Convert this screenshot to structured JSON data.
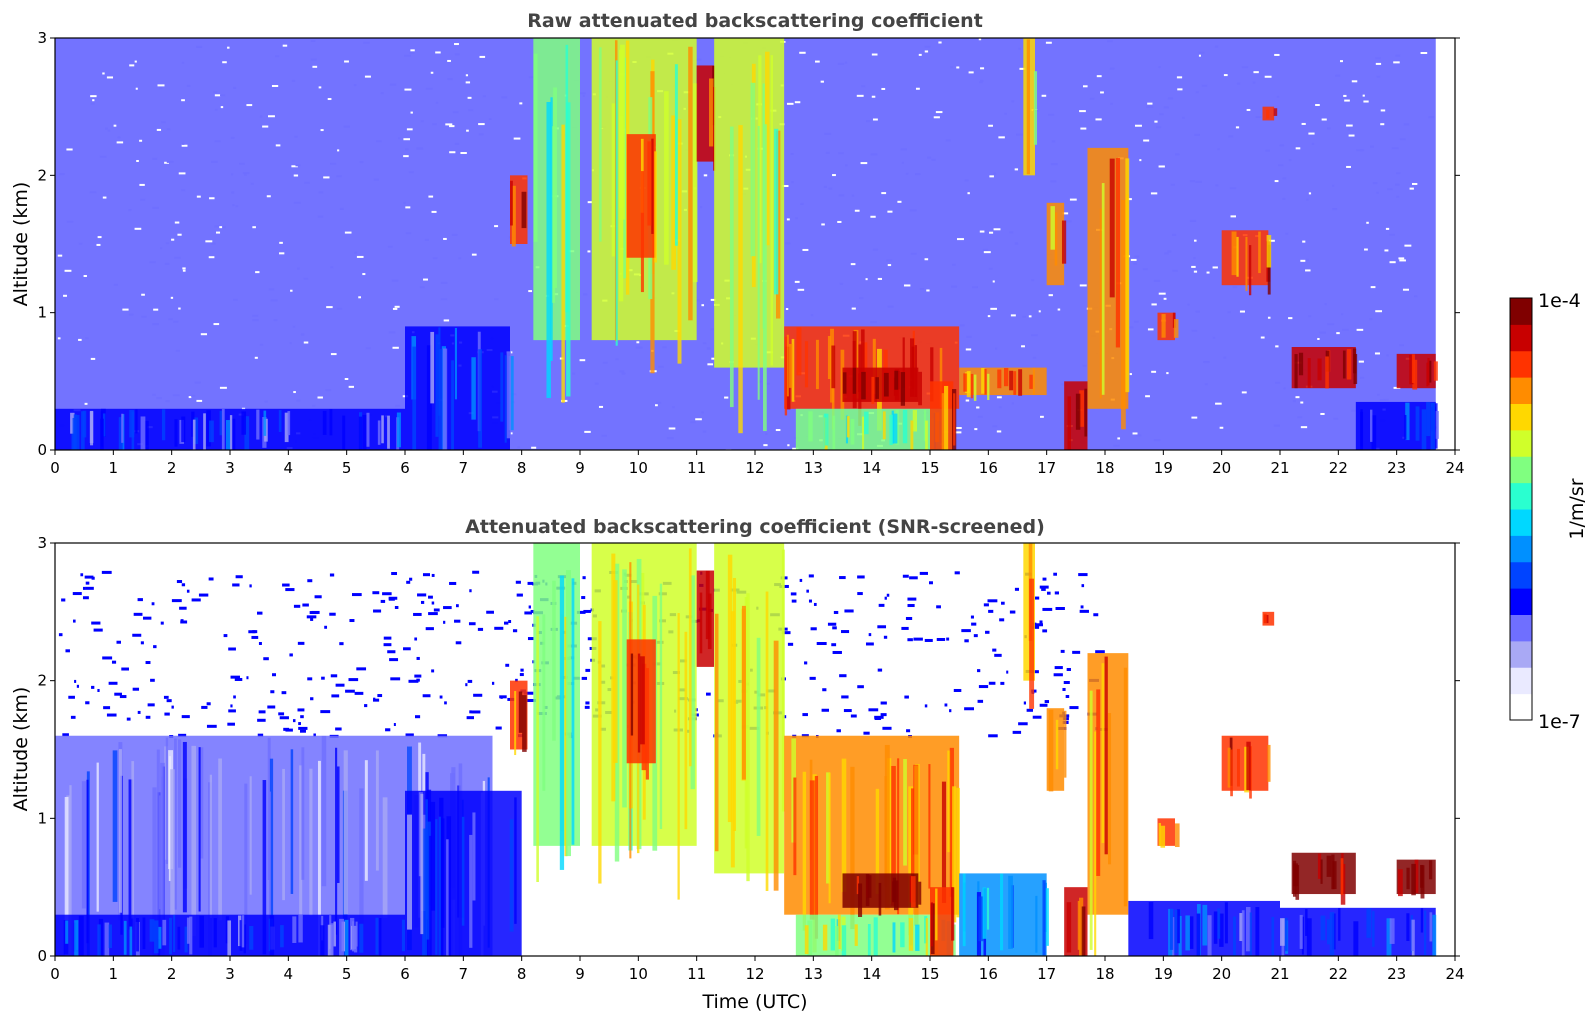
{
  "colors": {
    "colormap": [
      "#ffffff",
      "#eaeaff",
      "#a9a9f5",
      "#6f6fff",
      "#0000ff",
      "#0044ff",
      "#0090ff",
      "#00d8ff",
      "#2affd0",
      "#80ff80",
      "#d0ff2a",
      "#ffd800",
      "#ff8c00",
      "#ff3300",
      "#c80000",
      "#800000"
    ],
    "screened_peak": "#000000"
  },
  "chart_data": [
    {
      "type": "heatmap",
      "title": "Raw attenuated backscattering coefficient",
      "xlabel": "",
      "ylabel": "Altitude (km)",
      "xlim": [
        0,
        24
      ],
      "ylim": [
        0,
        3
      ],
      "x_ticks": [
        "0",
        "1",
        "2",
        "3",
        "4",
        "5",
        "6",
        "7",
        "8",
        "9",
        "10",
        "11",
        "12",
        "13",
        "14",
        "15",
        "16",
        "17",
        "18",
        "19",
        "20",
        "21",
        "22",
        "23",
        "24"
      ],
      "y_ticks": [
        "0",
        "1",
        "2",
        "3"
      ],
      "data_end_time": 23.67,
      "screened": false,
      "features": [
        {
          "t0": 0.0,
          "t1": 6.0,
          "z0": 0.0,
          "z1": 0.3,
          "level": 4
        },
        {
          "t0": 6.0,
          "t1": 7.8,
          "z0": 0.0,
          "z1": 0.9,
          "level": 4
        },
        {
          "t0": 7.8,
          "t1": 8.1,
          "z0": 1.5,
          "z1": 2.0,
          "level": 13
        },
        {
          "t0": 8.2,
          "t1": 9.0,
          "z0": 0.8,
          "z1": 3.0,
          "level": 9
        },
        {
          "t0": 9.2,
          "t1": 11.0,
          "z0": 0.8,
          "z1": 3.0,
          "level": 10
        },
        {
          "t0": 9.8,
          "t1": 10.3,
          "z0": 1.4,
          "z1": 2.3,
          "level": 13
        },
        {
          "t0": 11.0,
          "t1": 11.3,
          "z0": 2.1,
          "z1": 2.8,
          "level": 14
        },
        {
          "t0": 11.3,
          "t1": 12.5,
          "z0": 0.6,
          "z1": 3.0,
          "level": 10
        },
        {
          "t0": 12.5,
          "t1": 15.5,
          "z0": 0.3,
          "z1": 0.9,
          "level": 13
        },
        {
          "t0": 12.7,
          "t1": 15.4,
          "z0": 0.0,
          "z1": 0.3,
          "level": 9
        },
        {
          "t0": 13.5,
          "t1": 14.8,
          "z0": 0.35,
          "z1": 0.6,
          "level": 14
        },
        {
          "t0": 15.0,
          "t1": 15.4,
          "z0": 0.0,
          "z1": 0.5,
          "level": 13
        },
        {
          "t0": 15.5,
          "t1": 17.0,
          "z0": 0.4,
          "z1": 0.6,
          "level": 12
        },
        {
          "t0": 16.6,
          "t1": 16.8,
          "z0": 2.0,
          "z1": 3.0,
          "level": 11
        },
        {
          "t0": 17.0,
          "t1": 17.3,
          "z0": 1.2,
          "z1": 1.8,
          "level": 12
        },
        {
          "t0": 17.3,
          "t1": 17.7,
          "z0": 0.0,
          "z1": 0.5,
          "level": 14
        },
        {
          "t0": 17.7,
          "t1": 18.4,
          "z0": 0.3,
          "z1": 2.2,
          "level": 12
        },
        {
          "t0": 18.9,
          "t1": 19.2,
          "z0": 0.8,
          "z1": 1.0,
          "level": 13
        },
        {
          "t0": 20.0,
          "t1": 20.8,
          "z0": 1.2,
          "z1": 1.6,
          "level": 13
        },
        {
          "t0": 20.7,
          "t1": 20.9,
          "z0": 2.4,
          "z1": 2.5,
          "level": 13
        },
        {
          "t0": 21.2,
          "t1": 22.3,
          "z0": 0.45,
          "z1": 0.75,
          "level": 14
        },
        {
          "t0": 22.3,
          "t1": 23.67,
          "z0": 0.0,
          "z1": 0.35,
          "level": 4
        },
        {
          "t0": 23.0,
          "t1": 23.67,
          "z0": 0.45,
          "z1": 0.7,
          "level": 14
        }
      ]
    },
    {
      "type": "heatmap",
      "title": "Attenuated backscattering coefficient (SNR-screened)",
      "xlabel": "Time (UTC)",
      "ylabel": "Altitude (km)",
      "xlim": [
        0,
        24
      ],
      "ylim": [
        0,
        3
      ],
      "x_ticks": [
        "0",
        "1",
        "2",
        "3",
        "4",
        "5",
        "6",
        "7",
        "8",
        "9",
        "10",
        "11",
        "12",
        "13",
        "14",
        "15",
        "16",
        "17",
        "18",
        "19",
        "20",
        "21",
        "22",
        "23",
        "24"
      ],
      "y_ticks": [
        "0",
        "1",
        "2",
        "3"
      ],
      "data_end_time": 23.67,
      "screened": true,
      "features": [
        {
          "t0": 0.0,
          "t1": 7.5,
          "z0": 0.0,
          "z1": 1.6,
          "level": 3
        },
        {
          "t0": 0.0,
          "t1": 6.0,
          "z0": 0.0,
          "z1": 0.3,
          "level": 4
        },
        {
          "t0": 6.0,
          "t1": 8.0,
          "z0": 0.0,
          "z1": 1.2,
          "level": 4
        },
        {
          "t0": 7.8,
          "t1": 8.1,
          "z0": 1.5,
          "z1": 2.0,
          "level": 13
        },
        {
          "t0": 8.2,
          "t1": 9.0,
          "z0": 0.8,
          "z1": 3.0,
          "level": 9
        },
        {
          "t0": 9.2,
          "t1": 11.0,
          "z0": 0.8,
          "z1": 3.0,
          "level": 10
        },
        {
          "t0": 9.8,
          "t1": 10.3,
          "z0": 1.4,
          "z1": 2.3,
          "level": 13
        },
        {
          "t0": 11.0,
          "t1": 11.3,
          "z0": 2.1,
          "z1": 2.8,
          "level": 14
        },
        {
          "t0": 11.3,
          "t1": 12.5,
          "z0": 0.6,
          "z1": 3.0,
          "level": 10
        },
        {
          "t0": 12.5,
          "t1": 15.5,
          "z0": 0.3,
          "z1": 1.6,
          "level": 12
        },
        {
          "t0": 12.7,
          "t1": 15.4,
          "z0": 0.0,
          "z1": 0.3,
          "level": 9
        },
        {
          "t0": 13.5,
          "t1": 14.8,
          "z0": 0.35,
          "z1": 0.6,
          "level": 15
        },
        {
          "t0": 15.0,
          "t1": 15.4,
          "z0": 0.0,
          "z1": 0.5,
          "level": 13
        },
        {
          "t0": 15.5,
          "t1": 17.0,
          "z0": 0.0,
          "z1": 0.6,
          "level": 6
        },
        {
          "t0": 16.6,
          "t1": 16.8,
          "z0": 2.0,
          "z1": 3.0,
          "level": 11
        },
        {
          "t0": 17.0,
          "t1": 17.3,
          "z0": 1.2,
          "z1": 1.8,
          "level": 12
        },
        {
          "t0": 17.3,
          "t1": 17.7,
          "z0": 0.0,
          "z1": 0.5,
          "level": 14
        },
        {
          "t0": 17.7,
          "t1": 18.4,
          "z0": 0.3,
          "z1": 2.2,
          "level": 12
        },
        {
          "t0": 18.4,
          "t1": 21.0,
          "z0": 0.0,
          "z1": 0.4,
          "level": 4
        },
        {
          "t0": 18.9,
          "t1": 19.2,
          "z0": 0.8,
          "z1": 1.0,
          "level": 13
        },
        {
          "t0": 20.0,
          "t1": 20.8,
          "z0": 1.2,
          "z1": 1.6,
          "level": 13
        },
        {
          "t0": 20.7,
          "t1": 20.9,
          "z0": 2.4,
          "z1": 2.5,
          "level": 13
        },
        {
          "t0": 21.2,
          "t1": 22.3,
          "z0": 0.45,
          "z1": 0.75,
          "level": 15
        },
        {
          "t0": 21.0,
          "t1": 23.67,
          "z0": 0.0,
          "z1": 0.35,
          "level": 4
        },
        {
          "t0": 23.0,
          "t1": 23.67,
          "z0": 0.45,
          "z1": 0.7,
          "level": 15
        }
      ]
    }
  ],
  "colorbar": {
    "label": "1/m/sr",
    "max_label": "1e-4",
    "min_label": "1e-7"
  }
}
